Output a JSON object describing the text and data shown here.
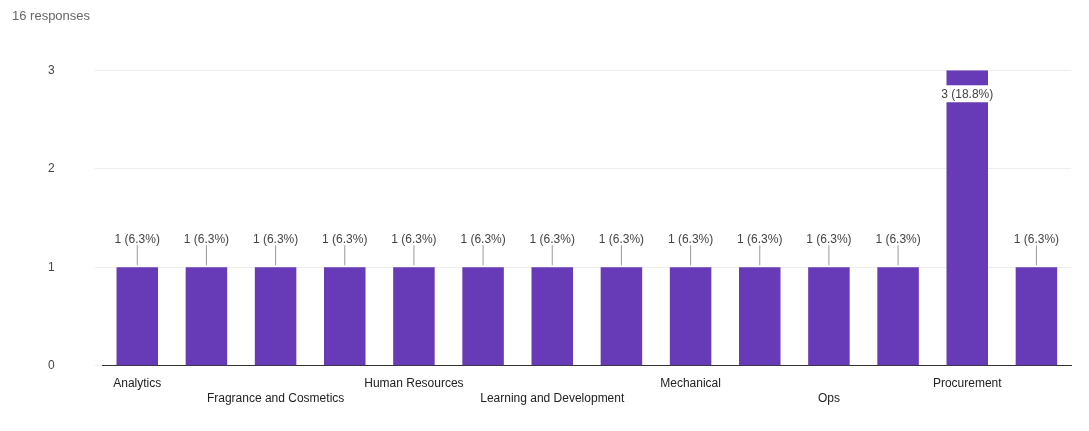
{
  "chart_data": {
    "type": "bar",
    "subtitle": "16 responses",
    "categories": [
      "Analytics",
      null,
      "Fragrance and Cosmetics",
      null,
      "Human Resources",
      null,
      "Learning and Development",
      null,
      "Mechanical",
      null,
      "Ops",
      null,
      "Procurement",
      null
    ],
    "values": [
      1,
      1,
      1,
      1,
      1,
      1,
      1,
      1,
      1,
      1,
      1,
      1,
      3,
      1
    ],
    "value_labels": [
      "1 (6.3%)",
      "1 (6.3%)",
      "1 (6.3%)",
      "1 (6.3%)",
      "1 (6.3%)",
      "1 (6.3%)",
      "1 (6.3%)",
      "1 (6.3%)",
      "1 (6.3%)",
      "1 (6.3%)",
      "1 (6.3%)",
      "1 (6.3%)",
      "3 (18.8%)",
      "1 (6.3%)"
    ],
    "color": "#673ab7",
    "ylim": [
      0,
      3
    ],
    "yticks": [
      0,
      1,
      2,
      3
    ],
    "grid": "y",
    "legend": false
  }
}
